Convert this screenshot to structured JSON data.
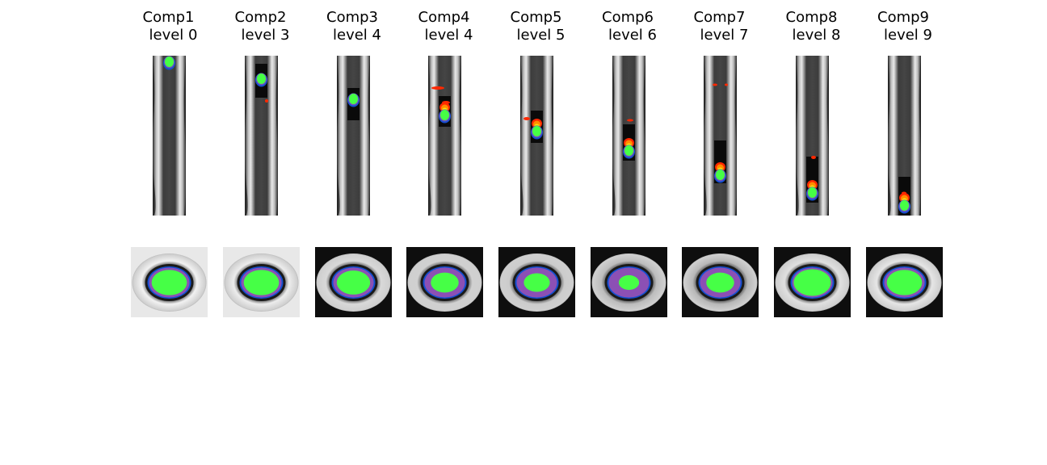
{
  "figure": {
    "background": "#ffffff",
    "colors": {
      "green": "#46ff46",
      "blue": "#1450d2",
      "purple": "#8c50b4",
      "red": "#ff2800",
      "orange": "#ff8c00",
      "yellow": "#ffe600"
    },
    "panels": [
      {
        "comp": "Comp1",
        "level": "level 0"
      },
      {
        "comp": "Comp2",
        "level": "level 3"
      },
      {
        "comp": "Comp3",
        "level": "level 4"
      },
      {
        "comp": "Comp4",
        "level": "level 4"
      },
      {
        "comp": "Comp5",
        "level": "level 5"
      },
      {
        "comp": "Comp6",
        "level": "level 6"
      },
      {
        "comp": "Comp7",
        "level": "level 7"
      },
      {
        "comp": "Comp8",
        "level": "level 8"
      },
      {
        "comp": "Comp9",
        "level": "level 9"
      }
    ]
  }
}
